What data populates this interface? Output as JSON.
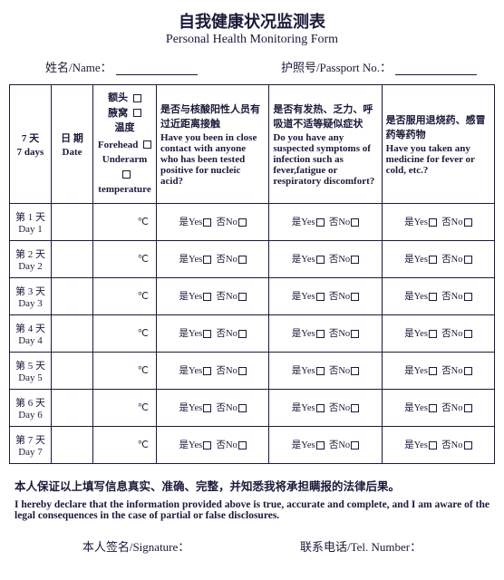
{
  "title": {
    "cn": "自我健康状况监测表",
    "en": "Personal Health Monitoring Form"
  },
  "info": {
    "name_label": "姓名/Name：",
    "passport_label": "护照号/Passport No.："
  },
  "headers": {
    "days_cn": "7 天",
    "days_en": "7 days",
    "date_cn": "日 期",
    "date_en": "Date",
    "temp_cn1": "额头",
    "temp_cn2": "腋窝",
    "temp_cn3": "温度",
    "temp_en1": "Forehead",
    "temp_en2": "Underarm",
    "temp_en3": "temperature",
    "q1_cn": "是否与核酸阳性人员有过近距离接触",
    "q1_en": "Have you been in close contact with anyone who has been tested positive for nucleic acid?",
    "q2_cn": "是否有发热、乏力、呼吸道不适等疑似症状",
    "q2_en": "Do you have any suspected symptoms of infection such as fever,fatigue or respiratory discomfort?",
    "q3_cn": "是否服用退烧药、感冒药等药物",
    "q3_en": "Have you taken any medicine for fever or cold, etc.?"
  },
  "rows": [
    {
      "cn": "第 1 天",
      "en": "Day 1"
    },
    {
      "cn": "第 2 天",
      "en": "Day 2"
    },
    {
      "cn": "第 3 天",
      "en": "Day 3"
    },
    {
      "cn": "第 4 天",
      "en": "Day 4"
    },
    {
      "cn": "第 5 天",
      "en": "Day 5"
    },
    {
      "cn": "第 6 天",
      "en": "Day 6"
    },
    {
      "cn": "第 7 天",
      "en": "Day 7"
    }
  ],
  "cell": {
    "temp_unit": "℃",
    "yes": "是Yes",
    "no": "否No"
  },
  "declaration": {
    "cn": "本人保证以上填写信息真实、准确、完整，并知悉我将承担瞒报的法律后果。",
    "en": "I hereby declare that the information provided above is true, accurate and complete, and I am aware of the legal consequences in the case of partial or false disclosures."
  },
  "signature": {
    "sig_label": "本人签名/Signature：",
    "tel_label": "联系电话/Tel. Number："
  },
  "style": {
    "border_color": "#1a1a3a",
    "text_color": "#1a1a3a",
    "bg_color": "#ffffff"
  }
}
